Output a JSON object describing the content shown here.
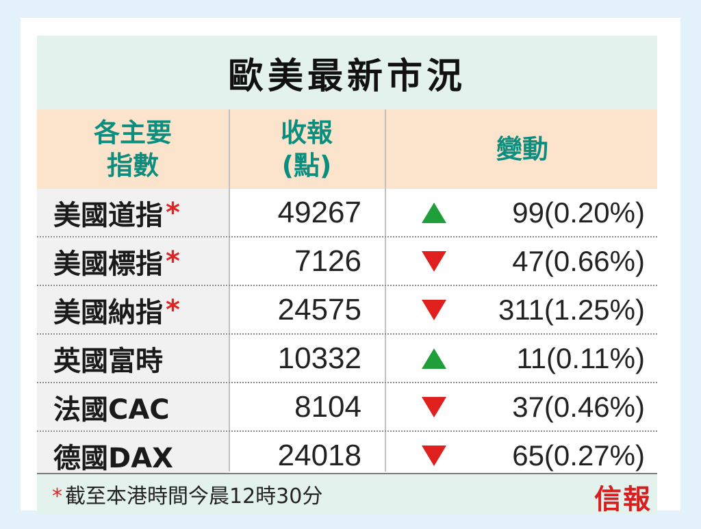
{
  "title": "歐美最新市況",
  "header": {
    "index_line1": "各主要",
    "index_line2": "指數",
    "close_line1": "收報",
    "close_line2": "(點)",
    "change": "變動"
  },
  "rows": [
    {
      "name": "美國道指",
      "star": "*",
      "close": "49267",
      "direction": "up",
      "change": "99(0.20%)"
    },
    {
      "name": "美國標指",
      "star": "*",
      "close": "7126",
      "direction": "down",
      "change": "47(0.66%)"
    },
    {
      "name": "美國納指",
      "star": "*",
      "close": "24575",
      "direction": "down",
      "change": "311(1.25%)"
    },
    {
      "name": "英國富時",
      "star": "",
      "close": "10332",
      "direction": "up",
      "change": "11(0.11%)"
    },
    {
      "name": "法國CAC",
      "star": "",
      "close": "8104",
      "direction": "down",
      "change": "37(0.46%)"
    },
    {
      "name": "德國DAX",
      "star": "",
      "close": "24018",
      "direction": "down",
      "change": "65(0.27%)"
    }
  ],
  "footer": {
    "star": "*",
    "note": "截至本港時間今晨12時30分",
    "brand": "信報"
  },
  "colors": {
    "up": "#1f9e3a",
    "down": "#e01f1f",
    "header_text": "#0d8d7e",
    "brand": "#d81e1e"
  }
}
